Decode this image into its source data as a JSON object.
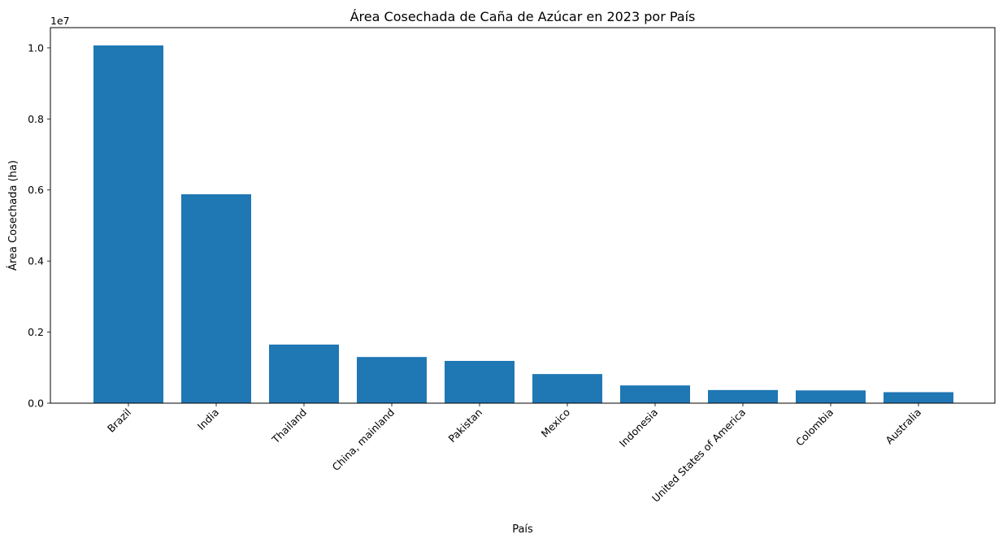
{
  "chart_data": {
    "type": "bar",
    "title": "Área Cosechada de Caña de Azúcar en 2023 por País",
    "xlabel": "País",
    "ylabel": "Área Cosechada (ha)",
    "y_offset_label": "1e7",
    "categories": [
      "Brazil",
      "India",
      "Thailand",
      "China, mainland",
      "Pakistan",
      "Mexico",
      "Indonesia",
      "United States of America",
      "Colombia",
      "Australia"
    ],
    "values": [
      10070000,
      5880000,
      1650000,
      1300000,
      1190000,
      820000,
      500000,
      370000,
      360000,
      310000
    ],
    "ylim": [
      0,
      10570000
    ],
    "y_ticks": [
      0,
      2000000,
      4000000,
      6000000,
      8000000,
      10000000
    ],
    "y_tick_labels": [
      "0.0",
      "0.2",
      "0.4",
      "0.6",
      "0.8",
      "1.0"
    ],
    "x_tick_rotation": "45 degrees",
    "grid": false,
    "legend": "none",
    "bar_color": "#1f77b4"
  }
}
